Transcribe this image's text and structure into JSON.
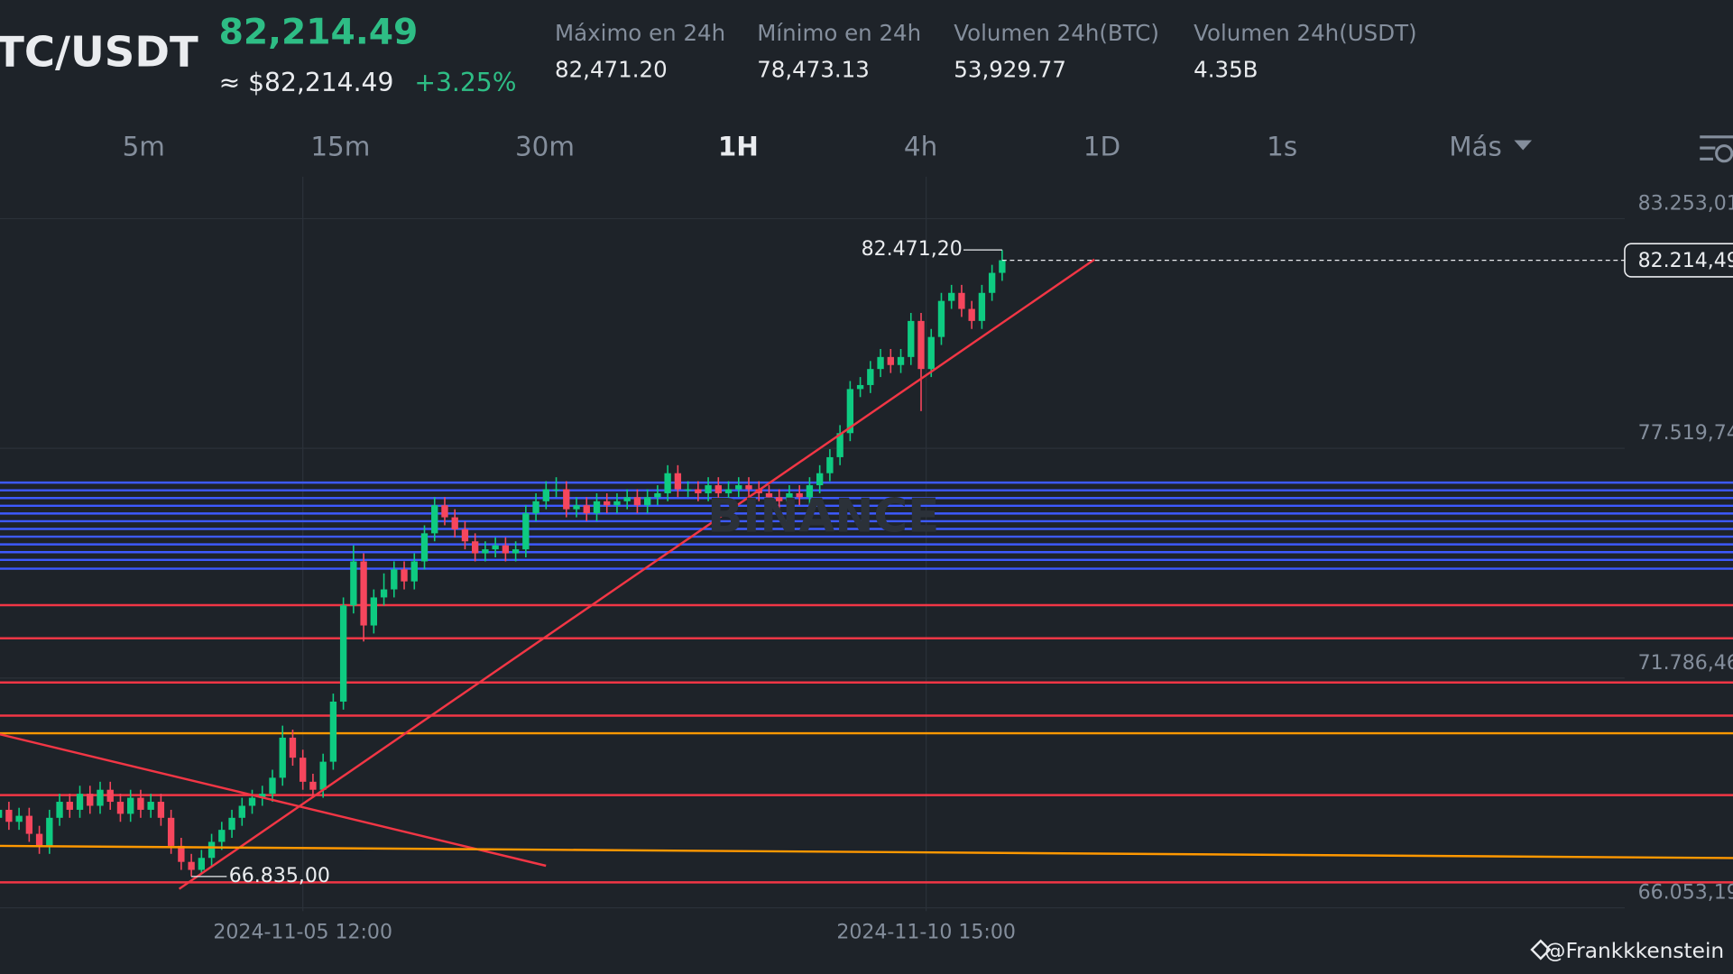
{
  "header": {
    "pair": "TC/USDT",
    "price": "82,214.49",
    "price_usd": "≈ $82,214.49",
    "change": "+3.25%",
    "stats": [
      {
        "label": "Máximo en 24h",
        "value": "82,471.20"
      },
      {
        "label": "Mínimo en 24h",
        "value": "78,473.13"
      },
      {
        "label": "Volumen 24h(BTC)",
        "value": "53,929.77"
      },
      {
        "label": "Volumen 24h(USDT)",
        "value": "4.35B"
      }
    ]
  },
  "timeframes": {
    "items": [
      "5m",
      "15m",
      "30m",
      "1H",
      "4h",
      "1D",
      "1s",
      "Más"
    ],
    "active": "1H"
  },
  "watermark": "BINANCE",
  "credit": "@Frankkkenstein",
  "chart_data": {
    "type": "candlestick",
    "up_color": "#0ecb81",
    "down_color": "#f6465d",
    "x": [
      -60,
      -58,
      -56,
      -54,
      -52,
      -50,
      -48,
      -46,
      -44,
      -42,
      -40,
      -38,
      -36,
      -34,
      -32,
      -30,
      -28,
      -26,
      -24,
      -22,
      -20,
      -18,
      -16,
      -14,
      -12,
      -10,
      -8,
      -6,
      -4,
      -2,
      0,
      2,
      4,
      6,
      8,
      10,
      12,
      14,
      16,
      18,
      20,
      22,
      24,
      26,
      28,
      30,
      32,
      34,
      36,
      38,
      40,
      42,
      44,
      46,
      48,
      50,
      52,
      54,
      56,
      58,
      60,
      62,
      64,
      66,
      68,
      70,
      72,
      74,
      76,
      78,
      80,
      82,
      84,
      86,
      88,
      90,
      92,
      94,
      96,
      98,
      100,
      102,
      104,
      106,
      108,
      110,
      112,
      114,
      116,
      118,
      120,
      122,
      124,
      126,
      128,
      130,
      132,
      134,
      136,
      138
    ],
    "ohlc": [
      [
        68300,
        68700,
        68100,
        68500
      ],
      [
        68500,
        68700,
        68000,
        68200
      ],
      [
        68200,
        68550,
        68000,
        68350
      ],
      [
        68350,
        68550,
        67700,
        67900
      ],
      [
        67900,
        68100,
        67400,
        67600
      ],
      [
        67600,
        68500,
        67400,
        68300
      ],
      [
        68300,
        68900,
        68100,
        68700
      ],
      [
        68700,
        68900,
        68300,
        68500
      ],
      [
        68500,
        69100,
        68300,
        68900
      ],
      [
        68900,
        69100,
        68400,
        68600
      ],
      [
        68600,
        69200,
        68400,
        69000
      ],
      [
        69000,
        69200,
        68500,
        68700
      ],
      [
        68700,
        68900,
        68200,
        68400
      ],
      [
        68400,
        69000,
        68200,
        68800
      ],
      [
        68800,
        69000,
        68300,
        68500
      ],
      [
        68500,
        68900,
        68300,
        68700
      ],
      [
        68700,
        68900,
        68100,
        68300
      ],
      [
        68300,
        68500,
        67400,
        67600
      ],
      [
        67600,
        67800,
        67000,
        67200
      ],
      [
        67200,
        67400,
        66835,
        67000
      ],
      [
        67000,
        67500,
        66900,
        67300
      ],
      [
        67300,
        67900,
        67100,
        67700
      ],
      [
        67700,
        68200,
        67500,
        68000
      ],
      [
        68000,
        68500,
        67800,
        68300
      ],
      [
        68300,
        68800,
        68100,
        68600
      ],
      [
        68600,
        69000,
        68400,
        68800
      ],
      [
        68800,
        69100,
        68600,
        68900
      ],
      [
        68900,
        69500,
        68700,
        69300
      ],
      [
        69300,
        70600,
        69100,
        70300
      ],
      [
        70300,
        70500,
        69600,
        69800
      ],
      [
        69800,
        70000,
        69000,
        69200
      ],
      [
        69200,
        69400,
        68800,
        69000
      ],
      [
        69000,
        69900,
        68800,
        69700
      ],
      [
        69700,
        71400,
        69500,
        71200
      ],
      [
        71200,
        73800,
        71000,
        73600
      ],
      [
        73600,
        75100,
        73400,
        74700
      ],
      [
        74700,
        74900,
        72700,
        73100
      ],
      [
        73100,
        74000,
        72900,
        73800
      ],
      [
        73800,
        74400,
        73600,
        74000
      ],
      [
        74000,
        74700,
        73800,
        74500
      ],
      [
        74500,
        74700,
        74000,
        74200
      ],
      [
        74200,
        74900,
        74000,
        74700
      ],
      [
        74700,
        75600,
        74500,
        75400
      ],
      [
        75400,
        76300,
        75200,
        76100
      ],
      [
        76100,
        76300,
        75600,
        75800
      ],
      [
        75800,
        76000,
        75300,
        75500
      ],
      [
        75500,
        75700,
        75000,
        75200
      ],
      [
        75200,
        75400,
        74700,
        74900
      ],
      [
        74900,
        75200,
        74700,
        75000
      ],
      [
        75000,
        75300,
        74800,
        75100
      ],
      [
        75100,
        75300,
        74700,
        74900
      ],
      [
        74900,
        75200,
        74700,
        75000
      ],
      [
        75000,
        76100,
        74800,
        75900
      ],
      [
        75900,
        76400,
        75700,
        76200
      ],
      [
        76200,
        76700,
        76000,
        76500
      ],
      [
        76500,
        76800,
        76300,
        76500
      ],
      [
        76500,
        76700,
        75800,
        76000
      ],
      [
        76000,
        76300,
        75800,
        76100
      ],
      [
        76100,
        76300,
        75700,
        75900
      ],
      [
        75900,
        76400,
        75700,
        76200
      ],
      [
        76200,
        76400,
        75900,
        76100
      ],
      [
        76100,
        76400,
        75900,
        76200
      ],
      [
        76200,
        76500,
        76000,
        76300
      ],
      [
        76300,
        76500,
        75900,
        76100
      ],
      [
        76100,
        76500,
        75900,
        76300
      ],
      [
        76300,
        76600,
        76100,
        76400
      ],
      [
        76400,
        77100,
        76200,
        76900
      ],
      [
        76900,
        77100,
        76300,
        76500
      ],
      [
        76500,
        76700,
        76300,
        76500
      ],
      [
        76500,
        76700,
        76200,
        76400
      ],
      [
        76400,
        76800,
        76200,
        76600
      ],
      [
        76600,
        76800,
        76200,
        76400
      ],
      [
        76400,
        76700,
        76200,
        76500
      ],
      [
        76500,
        76800,
        76300,
        76600
      ],
      [
        76600,
        76800,
        76300,
        76500
      ],
      [
        76500,
        76700,
        76200,
        76400
      ],
      [
        76400,
        76600,
        76100,
        76300
      ],
      [
        76300,
        76500,
        75900,
        76200
      ],
      [
        76200,
        76600,
        76000,
        76400
      ],
      [
        76400,
        76600,
        76100,
        76300
      ],
      [
        76300,
        76800,
        76100,
        76600
      ],
      [
        76600,
        77100,
        76400,
        76900
      ],
      [
        76900,
        77500,
        76700,
        77300
      ],
      [
        77300,
        78100,
        77100,
        77900
      ],
      [
        77900,
        79200,
        77700,
        79000
      ],
      [
        79000,
        79300,
        78800,
        79100
      ],
      [
        79100,
        79700,
        78900,
        79500
      ],
      [
        79500,
        80000,
        79300,
        79800
      ],
      [
        79800,
        80000,
        79400,
        79600
      ],
      [
        79600,
        80000,
        79400,
        79800
      ],
      [
        79800,
        80900,
        79600,
        80700
      ],
      [
        80700,
        80900,
        78450,
        79500
      ],
      [
        79500,
        80500,
        79300,
        80300
      ],
      [
        80300,
        81400,
        80100,
        81200
      ],
      [
        81200,
        81600,
        81000,
        81400
      ],
      [
        81400,
        81600,
        80800,
        81000
      ],
      [
        81000,
        81200,
        80500,
        80700
      ],
      [
        80700,
        81600,
        80500,
        81400
      ],
      [
        81400,
        82100,
        81200,
        81900
      ],
      [
        81900,
        82471.2,
        81700,
        82214.49
      ]
    ],
    "xlim": [
      -59.76,
      282.22
    ],
    "xticks": [
      {
        "value": 0,
        "label": "2024-11-05 12:00"
      },
      {
        "value": 123,
        "label": "2024-11-10 15:00"
      }
    ],
    "ylim": [
      65973,
      84300
    ],
    "yticks": [
      {
        "value": 83253.01,
        "label": "83.253,01"
      },
      {
        "value": 77519.74,
        "label": "77.519,74"
      },
      {
        "value": 71786.46,
        "label": "71.786,46"
      },
      {
        "value": 66053.19,
        "label": "66.053,19"
      }
    ],
    "grid": true,
    "high_label": {
      "x": 138,
      "value": 82471.2,
      "label": "82.471,20"
    },
    "low_label": {
      "x": -22,
      "value": 66835,
      "label": "66.835,00"
    },
    "last_price": {
      "value": 82214.49,
      "label": "82.214,49"
    },
    "levels": [
      {
        "color": "#3d5afe",
        "values": [
          76666,
          76473,
          76280,
          76087,
          75894,
          75702,
          75509,
          75316,
          75123,
          74930,
          74737,
          74517
        ]
      },
      {
        "color": "#f23645",
        "values": [
          73607,
          72780,
          71678,
          70851,
          68867,
          66690
        ]
      },
      {
        "color": "#ff9800",
        "values": [
          70410
        ]
      }
    ],
    "trendlines": [
      {
        "color": "#f23645",
        "x": [
          -24.4,
          156.2
        ],
        "values": [
          66525,
          82233
        ]
      },
      {
        "color": "#f23645",
        "x": [
          -59.76,
          47.98
        ],
        "values": [
          70383,
          67103
        ]
      },
      {
        "color": "#ff9800",
        "x": [
          -59.76,
          282.22
        ],
        "values": [
          67599,
          67296
        ]
      }
    ]
  }
}
